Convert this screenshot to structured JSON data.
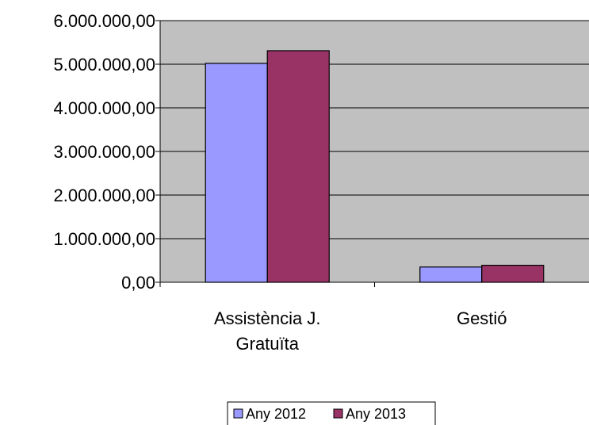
{
  "chart_data": {
    "type": "bar",
    "categories": [
      [
        "Assistència J.",
        "Gratuïta"
      ],
      [
        "Gestió"
      ]
    ],
    "series": [
      {
        "name": "Any 2012",
        "values": [
          5020000,
          350000
        ],
        "color": "#9999ff"
      },
      {
        "name": "Any 2013",
        "values": [
          5310000,
          390000
        ],
        "color": "#993366"
      }
    ],
    "yticks": [
      "0,00",
      "1.000.000,00",
      "2.000.000,00",
      "3.000.000,00",
      "4.000.000,00",
      "5.000.000,00",
      "6.000.000,00"
    ],
    "ylim": [
      0,
      6000000
    ],
    "plot_background": "#c0c0c0",
    "grid": true,
    "legend_position": "bottom",
    "title": "",
    "xlabel": "",
    "ylabel": ""
  }
}
